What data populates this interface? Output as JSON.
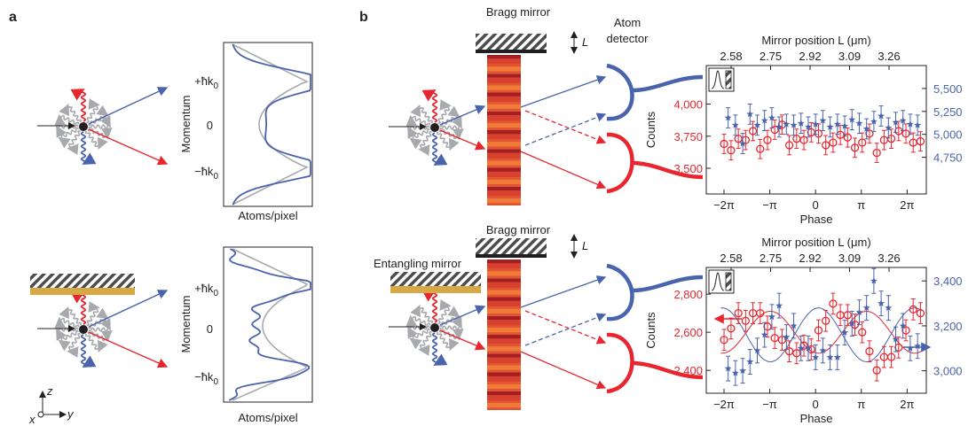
{
  "panels": {
    "a": {
      "letter": "a",
      "momentum_axis": {
        "label": "Momentum",
        "ticks": [
          {
            "text": "+ħk",
            "sub": "0"
          },
          {
            "text": "0",
            "sub": ""
          },
          {
            "text": "−ħk",
            "sub": "0"
          }
        ],
        "xlabel": "Atoms/pixel"
      },
      "axes_label": {
        "z": "z",
        "x": "x",
        "y": "y"
      }
    },
    "b": {
      "letter": "b",
      "bragg_mirror": "Bragg mirror",
      "mirror_L": "L",
      "atom_detector": [
        "Atom",
        "detector"
      ],
      "entangling_mirror": "Entangling mirror",
      "counts_label": "Counts",
      "phase_label": "Phase",
      "mirror_position_label": "Mirror position L (μm)",
      "mirror_position_ticks": [
        "2.58",
        "2.75",
        "2.92",
        "3.09",
        "3.26"
      ],
      "phase_ticks": [
        "−2π",
        "−π",
        "0",
        "π",
        "2π"
      ]
    }
  },
  "colors": {
    "red": "#e8262f",
    "blue": "#4a63ad",
    "gray": "#a7a9ac",
    "gold": "#d8a845",
    "dark": "#231f20"
  },
  "chart_data": [
    {
      "type": "scatter",
      "name_hint": "top",
      "xlabel": "Phase",
      "ylabel": "Counts",
      "x2label": "Mirror position L (μm)",
      "x_ticks": [
        "−2π",
        "−π",
        "0",
        "π",
        "2π"
      ],
      "x2_ticks": [
        "2.58",
        "2.75",
        "2.92",
        "3.09",
        "3.26"
      ],
      "xlim": [
        -7.5,
        7.6
      ],
      "ylim_left": [
        3300,
        4300
      ],
      "ylim_right": [
        4350,
        5750
      ],
      "left_ticks": [
        "4,000",
        "3,750",
        "3,500"
      ],
      "right_ticks": [
        "5,500",
        "5,250",
        "5,000",
        "4,750"
      ],
      "series": [
        {
          "color": "#e8262f",
          "marker": "circle",
          "axis": "left",
          "x": [
            -6.28,
            -5.8,
            -5.3,
            -4.8,
            -4.3,
            -3.8,
            -3.3,
            -2.8,
            -2.3,
            -1.8,
            -1.3,
            -0.8,
            -0.3,
            0.2,
            0.7,
            1.2,
            1.7,
            2.2,
            2.7,
            3.2,
            3.7,
            4.2,
            4.7,
            5.2,
            5.7,
            6.2,
            6.7,
            7.2
          ],
          "y": [
            3690,
            3640,
            3730,
            3720,
            3790,
            3650,
            3720,
            3800,
            3840,
            3680,
            3730,
            3720,
            3780,
            3770,
            3680,
            3700,
            3760,
            3740,
            3660,
            3700,
            3770,
            3620,
            3720,
            3730,
            3790,
            3770,
            3700,
            3710
          ],
          "err": 75
        },
        {
          "color": "#4a63ad",
          "marker": "star",
          "axis": "right",
          "x": [
            -6.0,
            -5.5,
            -5.0,
            -4.5,
            -4.0,
            -3.5,
            -3.0,
            -2.5,
            -2.0,
            -1.5,
            -1.0,
            -0.5,
            0.0,
            0.5,
            1.0,
            1.5,
            2.0,
            2.5,
            3.0,
            3.5,
            4.0,
            4.5,
            5.0,
            5.5,
            6.0,
            6.5,
            7.0
          ],
          "y": [
            5180,
            5100,
            4900,
            5220,
            5100,
            5150,
            5180,
            5080,
            5110,
            5100,
            5120,
            5080,
            5110,
            5150,
            5080,
            5110,
            5090,
            5160,
            5120,
            5060,
            5140,
            5200,
            5070,
            5130,
            5150,
            5110,
            5100
          ],
          "err": 110
        }
      ]
    },
    {
      "type": "scatter",
      "name_hint": "bottom",
      "xlabel": "Phase",
      "ylabel": "Counts",
      "x2label": "Mirror position L (μm)",
      "x_ticks": [
        "−2π",
        "−π",
        "0",
        "π",
        "2π"
      ],
      "x2_ticks": [
        "2.58",
        "2.75",
        "2.92",
        "3.09",
        "3.26"
      ],
      "xlim": [
        -7.5,
        7.6
      ],
      "ylim_left": [
        2280,
        2940
      ],
      "ylim_right": [
        2900,
        3460
      ],
      "left_ticks": [
        "2,800",
        "2,600",
        "2,400"
      ],
      "right_ticks": [
        "3,400",
        "3,200",
        "3,000"
      ],
      "series": [
        {
          "color": "#e8262f",
          "marker": "circle",
          "axis": "left",
          "x": [
            -6.28,
            -5.8,
            -5.3,
            -4.8,
            -4.3,
            -3.8,
            -3.3,
            -2.8,
            -2.3,
            -1.8,
            -1.3,
            -0.8,
            -0.3,
            0.2,
            0.7,
            1.2,
            1.7,
            2.2,
            2.7,
            3.2,
            3.7,
            4.2,
            4.7,
            5.2,
            5.7,
            6.2,
            6.7,
            7.2
          ],
          "y": [
            2560,
            2620,
            2700,
            2660,
            2700,
            2700,
            2630,
            2570,
            2560,
            2500,
            2490,
            2530,
            2510,
            2610,
            2660,
            2750,
            2690,
            2690,
            2640,
            2600,
            2500,
            2400,
            2470,
            2470,
            2520,
            2610,
            2720,
            2700
          ],
          "err": 55
        },
        {
          "color": "#4a63ad",
          "marker": "star",
          "axis": "right",
          "x": [
            -6.0,
            -5.5,
            -5.0,
            -4.5,
            -4.0,
            -3.5,
            -3.0,
            -2.5,
            -2.0,
            -1.5,
            -1.0,
            -0.5,
            0.0,
            0.5,
            1.0,
            1.5,
            2.0,
            2.5,
            3.0,
            3.5,
            4.0,
            4.5,
            5.0,
            5.5,
            6.0,
            6.5,
            7.0
          ],
          "y": [
            3010,
            2990,
            3000,
            3040,
            3090,
            3160,
            3240,
            3290,
            3150,
            3200,
            3100,
            3100,
            3060,
            3090,
            3060,
            3060,
            3170,
            3210,
            3260,
            3280,
            3400,
            3300,
            3280,
            3140,
            3200,
            3100,
            3110
          ],
          "err": 55
        }
      ],
      "fits": [
        {
          "color": "#e8262f",
          "axis": "left",
          "mean": 2600,
          "amp": 110,
          "period": 6.6,
          "phase0": -3.1
        },
        {
          "color": "#4a63ad",
          "axis": "right",
          "mean": 3160,
          "amp": 120,
          "period": 6.6,
          "phase0": 0.2
        }
      ]
    }
  ]
}
